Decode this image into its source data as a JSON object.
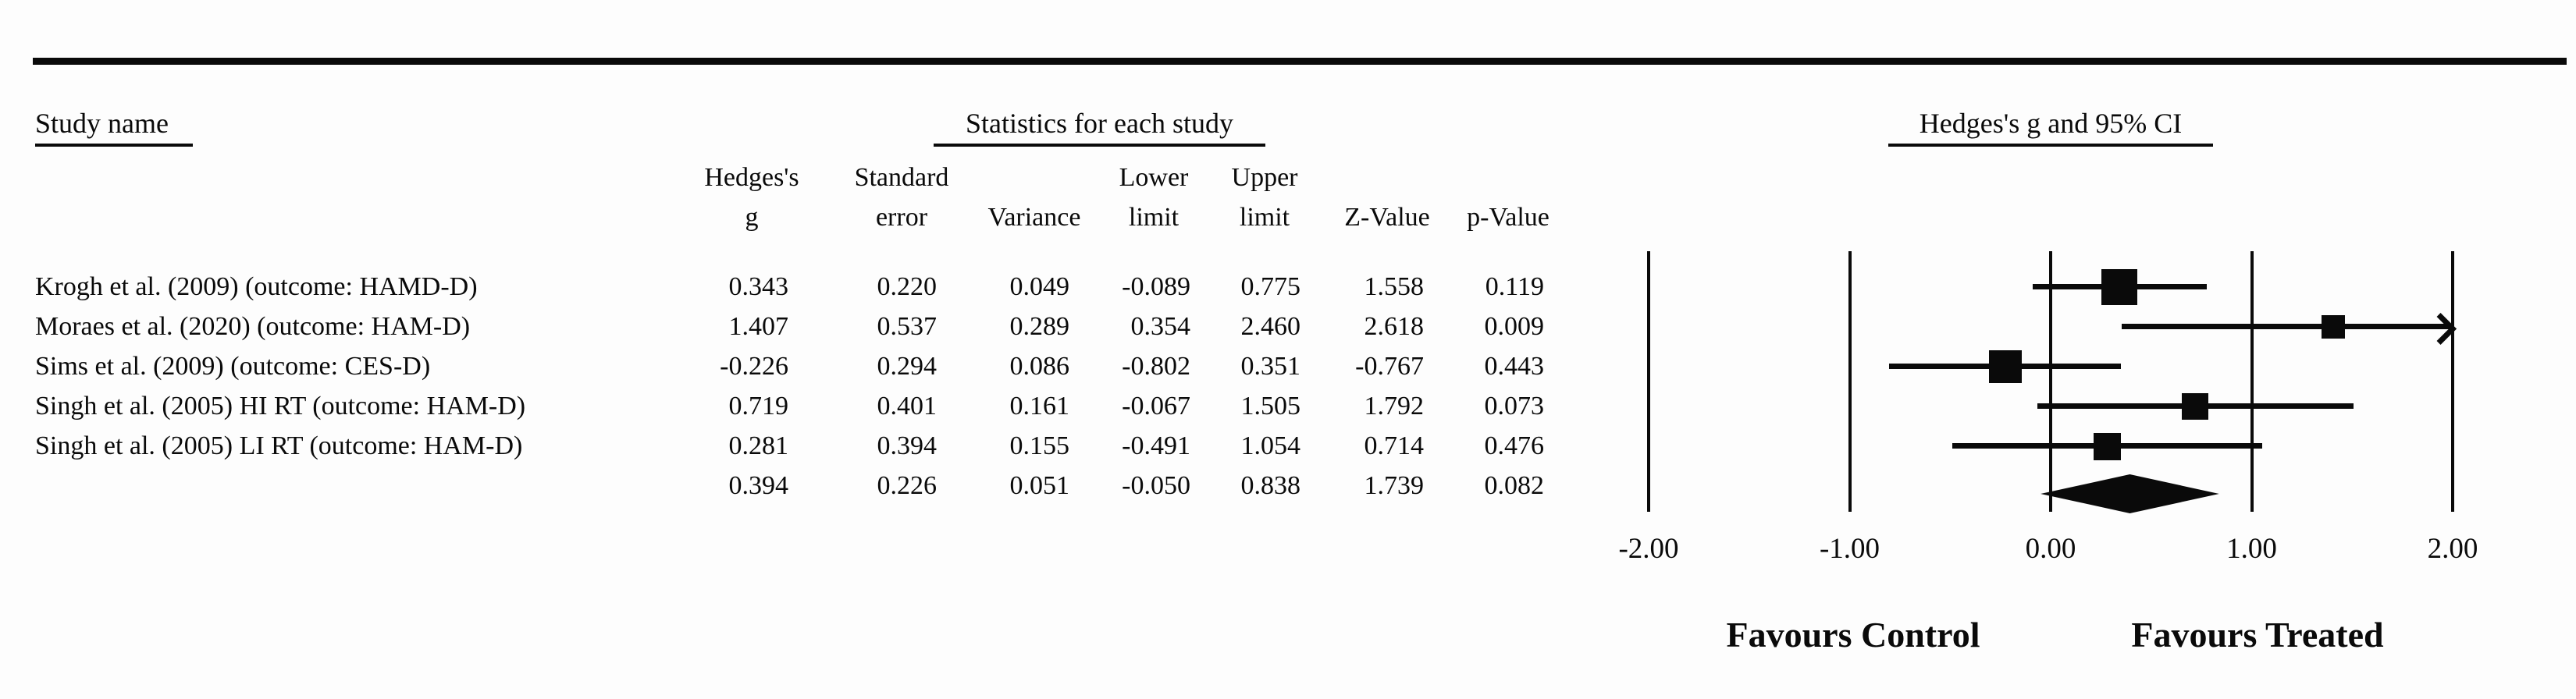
{
  "headers": {
    "study_name": "Study name",
    "stats": "Statistics for each study",
    "plot": "Hedges's g and 95% CI"
  },
  "table": {
    "columns": [
      {
        "l1": "Hedges's",
        "l2": "g"
      },
      {
        "l1": "Standard",
        "l2": "error"
      },
      {
        "l1": "",
        "l2": "Variance"
      },
      {
        "l1": "Lower",
        "l2": "limit"
      },
      {
        "l1": "Upper",
        "l2": "limit"
      },
      {
        "l1": "",
        "l2": "Z-Value"
      },
      {
        "l1": "",
        "l2": "p-Value"
      }
    ]
  },
  "footer": {
    "favours_control": "Favours Control",
    "favours_treated": "Favours Treated"
  },
  "chart_data": {
    "type": "scatter",
    "subtype": "forest_plot",
    "title": "Hedges's g and 95% CI",
    "effect_measure": "Hedges's g",
    "xlabel": "",
    "ylabel": "",
    "grid": "vertical-reference-lines",
    "legend": "none",
    "annotations": [
      "Favours Control",
      "Favours Treated"
    ],
    "axis": {
      "min": -2,
      "max": 2,
      "ticks": [
        -2,
        -1,
        0,
        1,
        2
      ],
      "tick_labels": [
        "-2.00",
        "-1.00",
        "0.00",
        "1.00",
        "2.00"
      ]
    },
    "studies": [
      {
        "name": "Krogh et al. (2009) (outcome: HAMD-D)",
        "hedges_g": 0.343,
        "standard_error": 0.22,
        "variance": 0.049,
        "lower_limit": -0.089,
        "upper_limit": 0.775,
        "z_value": 1.558,
        "p_value": 0.119,
        "marker_size": 46
      },
      {
        "name": "Moraes et al. (2020) (outcome: HAM-D)",
        "hedges_g": 1.407,
        "standard_error": 0.537,
        "variance": 0.289,
        "lower_limit": 0.354,
        "upper_limit": 2.46,
        "z_value": 2.618,
        "p_value": 0.009,
        "marker_size": 30
      },
      {
        "name": "Sims et al. (2009) (outcome: CES-D)",
        "hedges_g": -0.226,
        "standard_error": 0.294,
        "variance": 0.086,
        "lower_limit": -0.802,
        "upper_limit": 0.351,
        "z_value": -0.767,
        "p_value": 0.443,
        "marker_size": 42
      },
      {
        "name": "Singh et al. (2005) HI RT (outcome: HAM-D)",
        "hedges_g": 0.719,
        "standard_error": 0.401,
        "variance": 0.161,
        "lower_limit": -0.067,
        "upper_limit": 1.505,
        "z_value": 1.792,
        "p_value": 0.073,
        "marker_size": 34
      },
      {
        "name": "Singh et al. (2005) LI RT (outcome: HAM-D)",
        "hedges_g": 0.281,
        "standard_error": 0.394,
        "variance": 0.155,
        "lower_limit": -0.491,
        "upper_limit": 1.054,
        "z_value": 0.714,
        "p_value": 0.476,
        "marker_size": 35
      }
    ],
    "overall": {
      "hedges_g": 0.394,
      "standard_error": 0.226,
      "variance": 0.051,
      "lower_limit": -0.05,
      "upper_limit": 0.838,
      "z_value": 1.739,
      "p_value": 0.082
    }
  }
}
